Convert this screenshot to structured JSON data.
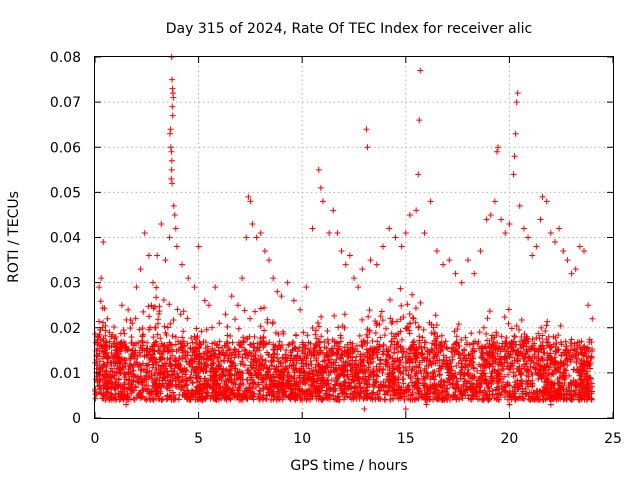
{
  "chart_data": {
    "type": "scatter",
    "title": "Day 315 of 2024, Rate Of TEC Index for receiver alic",
    "xlabel": "GPS time / hours",
    "ylabel": "ROTI / TECUs",
    "xlim": [
      0,
      25
    ],
    "ylim": [
      0,
      0.08
    ],
    "xticks": [
      0,
      5,
      10,
      15,
      20,
      25
    ],
    "yticks": [
      0,
      0.01,
      0.02,
      0.03,
      0.04,
      0.05,
      0.06,
      0.07,
      0.08
    ],
    "xtick_labels": [
      "0",
      "5",
      "10",
      "15",
      "20",
      "25"
    ],
    "ytick_labels": [
      "0",
      "0.01",
      "0.02",
      "0.03",
      "0.04",
      "0.05",
      "0.06",
      "0.07",
      "0.08"
    ],
    "grid": true,
    "marker": "+",
    "color": "#ff0000",
    "data_extent_x": [
      0,
      24
    ],
    "series": [
      {
        "points": [
          [
            0.1,
            0.012
          ],
          [
            0.2,
            0.029
          ],
          [
            0.3,
            0.031
          ],
          [
            0.4,
            0.039
          ],
          [
            0.6,
            0.022
          ],
          [
            0.8,
            0.018
          ],
          [
            1.0,
            0.015
          ],
          [
            1.3,
            0.025
          ],
          [
            1.6,
            0.024
          ],
          [
            1.8,
            0.021
          ],
          [
            2.0,
            0.029
          ],
          [
            2.2,
            0.033
          ],
          [
            2.4,
            0.041
          ],
          [
            2.6,
            0.036
          ],
          [
            2.8,
            0.03
          ],
          [
            3.0,
            0.036
          ],
          [
            3.2,
            0.043
          ],
          [
            3.4,
            0.035
          ],
          [
            3.6,
            0.04
          ],
          [
            3.7,
            0.08
          ],
          [
            3.72,
            0.075
          ],
          [
            3.74,
            0.073
          ],
          [
            3.76,
            0.072
          ],
          [
            3.78,
            0.071
          ],
          [
            3.73,
            0.069
          ],
          [
            3.75,
            0.067
          ],
          [
            3.65,
            0.064
          ],
          [
            3.62,
            0.063
          ],
          [
            3.66,
            0.06
          ],
          [
            3.69,
            0.059
          ],
          [
            3.71,
            0.057
          ],
          [
            3.7,
            0.055
          ],
          [
            3.68,
            0.053
          ],
          [
            3.72,
            0.052
          ],
          [
            3.8,
            0.047
          ],
          [
            3.85,
            0.045
          ],
          [
            3.9,
            0.042
          ],
          [
            3.95,
            0.038
          ],
          [
            4.2,
            0.034
          ],
          [
            4.5,
            0.031
          ],
          [
            4.8,
            0.029
          ],
          [
            5.0,
            0.038
          ],
          [
            5.3,
            0.026
          ],
          [
            5.5,
            0.025
          ],
          [
            5.8,
            0.029
          ],
          [
            6.0,
            0.021
          ],
          [
            6.3,
            0.023
          ],
          [
            6.6,
            0.027
          ],
          [
            6.9,
            0.025
          ],
          [
            7.1,
            0.031
          ],
          [
            7.3,
            0.04
          ],
          [
            7.4,
            0.049
          ],
          [
            7.5,
            0.048
          ],
          [
            7.6,
            0.043
          ],
          [
            7.8,
            0.04
          ],
          [
            8.0,
            0.041
          ],
          [
            8.2,
            0.037
          ],
          [
            8.4,
            0.035
          ],
          [
            8.6,
            0.031
          ],
          [
            8.8,
            0.028
          ],
          [
            9.0,
            0.027
          ],
          [
            9.3,
            0.03
          ],
          [
            9.6,
            0.026
          ],
          [
            9.9,
            0.024
          ],
          [
            10.2,
            0.029
          ],
          [
            10.5,
            0.042
          ],
          [
            10.8,
            0.055
          ],
          [
            10.9,
            0.051
          ],
          [
            11.0,
            0.048
          ],
          [
            11.3,
            0.041
          ],
          [
            11.5,
            0.046
          ],
          [
            11.7,
            0.041
          ],
          [
            11.9,
            0.037
          ],
          [
            12.1,
            0.034
          ],
          [
            12.3,
            0.036
          ],
          [
            12.5,
            0.031
          ],
          [
            12.7,
            0.029
          ],
          [
            12.9,
            0.033
          ],
          [
            13.1,
            0.064
          ],
          [
            13.15,
            0.06
          ],
          [
            13.3,
            0.035
          ],
          [
            13.6,
            0.034
          ],
          [
            13.9,
            0.038
          ],
          [
            14.2,
            0.042
          ],
          [
            14.5,
            0.04
          ],
          [
            14.8,
            0.038
          ],
          [
            15.0,
            0.041
          ],
          [
            15.2,
            0.045
          ],
          [
            15.5,
            0.046
          ],
          [
            15.6,
            0.054
          ],
          [
            15.65,
            0.066
          ],
          [
            15.7,
            0.077
          ],
          [
            15.9,
            0.041
          ],
          [
            16.2,
            0.048
          ],
          [
            16.5,
            0.037
          ],
          [
            16.8,
            0.034
          ],
          [
            17.1,
            0.035
          ],
          [
            17.4,
            0.032
          ],
          [
            17.7,
            0.03
          ],
          [
            18.0,
            0.035
          ],
          [
            18.3,
            0.032
          ],
          [
            18.6,
            0.037
          ],
          [
            18.9,
            0.044
          ],
          [
            19.1,
            0.045
          ],
          [
            19.3,
            0.048
          ],
          [
            19.4,
            0.059
          ],
          [
            19.45,
            0.06
          ],
          [
            19.6,
            0.044
          ],
          [
            19.8,
            0.041
          ],
          [
            20.0,
            0.043
          ],
          [
            20.2,
            0.054
          ],
          [
            20.25,
            0.058
          ],
          [
            20.3,
            0.063
          ],
          [
            20.35,
            0.07
          ],
          [
            20.4,
            0.072
          ],
          [
            20.5,
            0.047
          ],
          [
            20.7,
            0.042
          ],
          [
            20.9,
            0.04
          ],
          [
            21.1,
            0.036
          ],
          [
            21.3,
            0.038
          ],
          [
            21.5,
            0.044
          ],
          [
            21.6,
            0.049
          ],
          [
            21.8,
            0.048
          ],
          [
            22.0,
            0.041
          ],
          [
            22.2,
            0.039
          ],
          [
            22.4,
            0.042
          ],
          [
            22.6,
            0.037
          ],
          [
            22.8,
            0.035
          ],
          [
            23.0,
            0.032
          ],
          [
            23.2,
            0.033
          ],
          [
            23.4,
            0.038
          ],
          [
            23.6,
            0.037
          ],
          [
            23.8,
            0.025
          ],
          [
            24.0,
            0.022
          ],
          [
            0.5,
            0.004
          ],
          [
            1.5,
            0.003
          ],
          [
            2.5,
            0.004
          ],
          [
            3.5,
            0.005
          ],
          [
            5.2,
            0.004
          ],
          [
            6.5,
            0.005
          ],
          [
            8.5,
            0.004
          ],
          [
            10.0,
            0.004
          ],
          [
            11.5,
            0.005
          ],
          [
            13.0,
            0.002
          ],
          [
            14.0,
            0.004
          ],
          [
            15.0,
            0.002
          ],
          [
            16.0,
            0.003
          ],
          [
            17.0,
            0.004
          ],
          [
            18.0,
            0.005
          ],
          [
            19.0,
            0.004
          ],
          [
            20.0,
            0.003
          ],
          [
            21.0,
            0.004
          ],
          [
            22.0,
            0.003
          ],
          [
            23.0,
            0.004
          ]
        ]
      }
    ],
    "dense_band": {
      "y_min": 0.002,
      "y_max": 0.02,
      "upper_envelope": [
        [
          0,
          0.03
        ],
        [
          1,
          0.023
        ],
        [
          2,
          0.025
        ],
        [
          3,
          0.03
        ],
        [
          4,
          0.027
        ],
        [
          5,
          0.022
        ],
        [
          6,
          0.02
        ],
        [
          7,
          0.025
        ],
        [
          8,
          0.028
        ],
        [
          9,
          0.022
        ],
        [
          10,
          0.021
        ],
        [
          11,
          0.025
        ],
        [
          12,
          0.024
        ],
        [
          13,
          0.025
        ],
        [
          14,
          0.03
        ],
        [
          15,
          0.032
        ],
        [
          16,
          0.028
        ],
        [
          17,
          0.022
        ],
        [
          18,
          0.021
        ],
        [
          19,
          0.025
        ],
        [
          20,
          0.027
        ],
        [
          21,
          0.024
        ],
        [
          22,
          0.023
        ],
        [
          23,
          0.024
        ],
        [
          24,
          0.02
        ]
      ]
    }
  }
}
